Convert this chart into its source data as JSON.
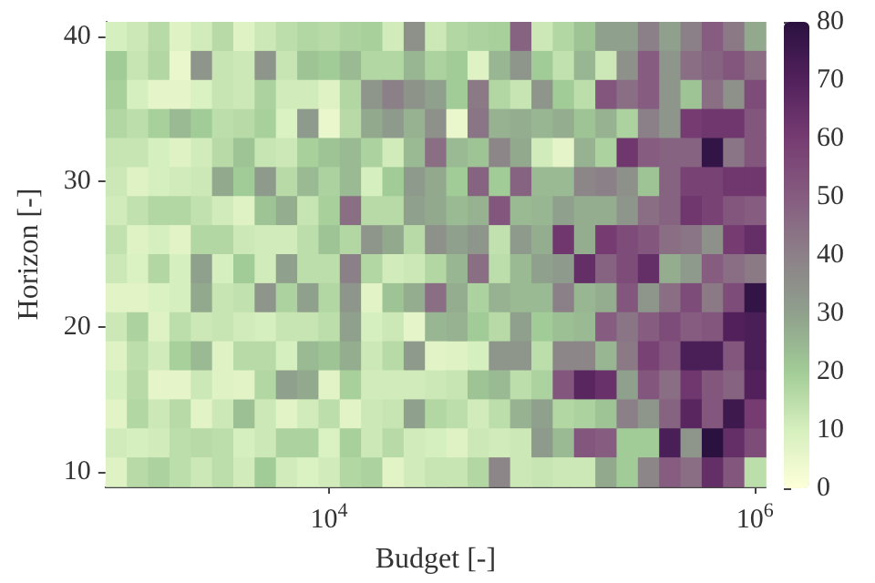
{
  "chart_data": {
    "type": "heatmap",
    "xlabel": "Budget [-]",
    "ylabel": "Horizon [-]",
    "x": [
      1000,
      1259,
      1585,
      1995,
      2512,
      3162,
      3981,
      5012,
      6310,
      7943,
      10000,
      12589,
      15849,
      19953,
      25119,
      31623,
      39811,
      50119,
      63096,
      79433,
      100000,
      125893,
      158489,
      199526,
      251189,
      316228,
      398107,
      501187,
      630957,
      794328,
      1000000
    ],
    "xlim": [
      891,
      1122018
    ],
    "xticks": [
      {
        "value": 10000,
        "label": "10$^{4}$"
      },
      {
        "value": 1000000,
        "label": "10$^{6}$"
      }
    ],
    "ylim": [
      9,
      41
    ],
    "yticks": [
      10,
      20,
      30,
      40
    ],
    "log": "x",
    "clim": [
      0,
      80
    ],
    "cticks": [
      0,
      10,
      20,
      30,
      40,
      50,
      60,
      70,
      80
    ],
    "cells": [
      [
        10,
        12,
        16,
        8,
        11,
        16,
        8,
        12,
        15,
        17,
        16,
        18,
        19,
        11,
        35,
        12,
        17,
        18,
        19,
        48,
        12,
        17,
        22,
        30,
        30,
        40,
        30,
        40,
        50,
        42,
        28
      ],
      [
        20,
        13,
        17,
        5,
        33,
        13,
        12,
        33,
        13,
        22,
        20,
        24,
        17,
        17,
        25,
        18,
        20,
        8,
        25,
        33,
        20,
        14,
        25,
        12,
        35,
        50,
        33,
        45,
        48,
        52,
        45
      ],
      [
        19,
        10,
        6,
        6,
        9,
        13,
        12,
        18,
        11,
        11,
        8,
        17,
        33,
        40,
        34,
        30,
        20,
        42,
        17,
        13,
        33,
        20,
        15,
        52,
        45,
        50,
        33,
        22,
        45,
        35,
        55
      ],
      [
        17,
        15,
        19,
        24,
        20,
        15,
        16,
        19,
        9,
        32,
        5,
        16,
        28,
        32,
        26,
        35,
        5,
        43,
        26,
        27,
        25,
        27,
        22,
        26,
        18,
        40,
        33,
        60,
        62,
        62,
        52
      ],
      [
        13,
        13,
        10,
        8,
        11,
        16,
        22,
        13,
        12,
        19,
        22,
        24,
        18,
        11,
        24,
        45,
        24,
        22,
        38,
        28,
        11,
        6,
        26,
        18,
        62,
        50,
        48,
        48,
        78,
        43,
        52
      ],
      [
        12,
        8,
        10,
        11,
        12,
        28,
        20,
        32,
        16,
        24,
        18,
        24,
        10,
        20,
        32,
        28,
        20,
        48,
        20,
        48,
        24,
        24,
        38,
        40,
        35,
        22,
        48,
        58,
        58,
        62,
        62
      ],
      [
        11,
        14,
        17,
        17,
        14,
        11,
        8,
        22,
        27,
        13,
        19,
        45,
        16,
        16,
        30,
        28,
        24,
        26,
        52,
        24,
        25,
        30,
        27,
        27,
        33,
        45,
        48,
        62,
        58,
        52,
        50
      ],
      [
        14,
        8,
        10,
        7,
        17,
        17,
        12,
        11,
        11,
        15,
        22,
        17,
        33,
        28,
        16,
        35,
        30,
        33,
        14,
        32,
        27,
        62,
        27,
        60,
        55,
        52,
        45,
        43,
        35,
        60,
        65
      ],
      [
        12,
        9,
        17,
        10,
        30,
        10,
        20,
        11,
        30,
        15,
        15,
        40,
        17,
        11,
        12,
        17,
        25,
        45,
        15,
        24,
        30,
        32,
        65,
        48,
        55,
        65,
        27,
        32,
        50,
        45,
        42
      ],
      [
        7,
        7,
        9,
        10,
        28,
        13,
        14,
        33,
        18,
        30,
        17,
        33,
        7,
        22,
        27,
        45,
        27,
        18,
        26,
        24,
        24,
        40,
        25,
        27,
        52,
        33,
        45,
        55,
        42,
        55,
        78
      ],
      [
        12,
        18,
        8,
        15,
        12,
        13,
        11,
        10,
        13,
        13,
        15,
        30,
        10,
        12,
        6,
        25,
        26,
        20,
        16,
        30,
        20,
        23,
        24,
        50,
        43,
        50,
        55,
        50,
        52,
        70,
        72
      ],
      [
        8,
        15,
        11,
        19,
        24,
        8,
        16,
        16,
        10,
        24,
        22,
        27,
        12,
        16,
        32,
        7,
        8,
        10,
        33,
        33,
        15,
        38,
        38,
        25,
        42,
        58,
        52,
        72,
        72,
        52,
        72
      ],
      [
        10,
        16,
        6,
        6,
        12,
        8,
        7,
        17,
        30,
        28,
        7,
        19,
        11,
        11,
        11,
        12,
        13,
        22,
        24,
        15,
        18,
        52,
        68,
        64,
        30,
        52,
        45,
        62,
        52,
        48,
        70
      ],
      [
        7,
        17,
        12,
        16,
        7,
        12,
        23,
        12,
        7,
        11,
        15,
        7,
        12,
        13,
        30,
        17,
        15,
        11,
        15,
        26,
        30,
        17,
        18,
        22,
        40,
        33,
        48,
        68,
        52,
        75,
        60
      ],
      [
        11,
        10,
        11,
        15,
        16,
        15,
        10,
        12,
        18,
        18,
        9,
        19,
        12,
        16,
        11,
        10,
        8,
        12,
        11,
        12,
        32,
        24,
        52,
        50,
        20,
        20,
        72,
        33,
        80,
        65,
        55
      ],
      [
        8,
        16,
        18,
        15,
        12,
        15,
        11,
        20,
        11,
        9,
        11,
        17,
        18,
        7,
        11,
        13,
        13,
        17,
        38,
        12,
        13,
        12,
        12,
        28,
        20,
        38,
        50,
        45,
        65,
        52,
        15
      ]
    ]
  }
}
